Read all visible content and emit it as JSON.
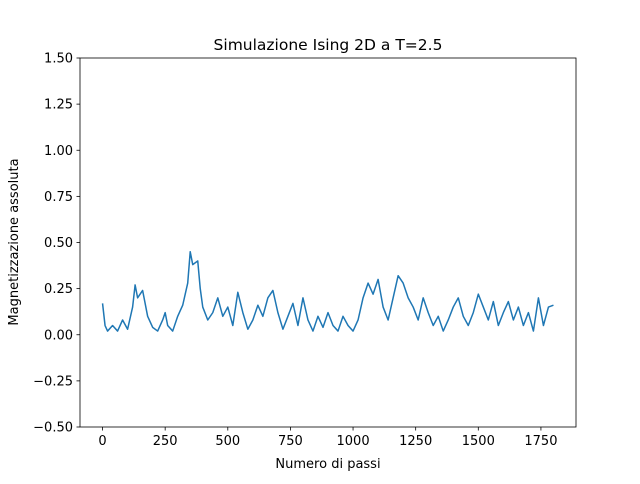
{
  "chart_data": {
    "type": "line",
    "title": "Simulazione Ising 2D a T=2.5",
    "x_label": "Numero di passi",
    "y_label": "Magnetizzazione assoluta",
    "color": "#1f77b4",
    "x": [
      0,
      10,
      20,
      40,
      60,
      80,
      100,
      120,
      130,
      140,
      160,
      180,
      200,
      220,
      240,
      250,
      260,
      280,
      300,
      320,
      340,
      350,
      360,
      380,
      390,
      400,
      420,
      440,
      460,
      480,
      500,
      520,
      540,
      560,
      580,
      600,
      620,
      640,
      660,
      680,
      700,
      720,
      740,
      760,
      780,
      800,
      820,
      840,
      860,
      880,
      900,
      920,
      940,
      960,
      980,
      1000,
      1020,
      1040,
      1060,
      1080,
      1100,
      1120,
      1140,
      1160,
      1180,
      1200,
      1220,
      1240,
      1260,
      1280,
      1300,
      1320,
      1340,
      1360,
      1380,
      1400,
      1420,
      1440,
      1460,
      1480,
      1500,
      1520,
      1540,
      1560,
      1580,
      1600,
      1620,
      1640,
      1660,
      1680,
      1700,
      1720,
      1740,
      1760,
      1780,
      1800
    ],
    "values": [
      0.17,
      0.05,
      0.02,
      0.05,
      0.02,
      0.08,
      0.03,
      0.15,
      0.27,
      0.2,
      0.24,
      0.1,
      0.04,
      0.02,
      0.08,
      0.12,
      0.05,
      0.02,
      0.1,
      0.16,
      0.28,
      0.45,
      0.38,
      0.4,
      0.25,
      0.15,
      0.08,
      0.12,
      0.2,
      0.1,
      0.15,
      0.05,
      0.23,
      0.12,
      0.03,
      0.08,
      0.16,
      0.1,
      0.2,
      0.24,
      0.12,
      0.03,
      0.1,
      0.17,
      0.05,
      0.2,
      0.08,
      0.02,
      0.1,
      0.04,
      0.12,
      0.05,
      0.02,
      0.1,
      0.05,
      0.02,
      0.08,
      0.2,
      0.28,
      0.22,
      0.3,
      0.15,
      0.08,
      0.2,
      0.32,
      0.28,
      0.2,
      0.15,
      0.08,
      0.2,
      0.12,
      0.05,
      0.1,
      0.02,
      0.08,
      0.15,
      0.2,
      0.1,
      0.05,
      0.12,
      0.22,
      0.15,
      0.08,
      0.18,
      0.05,
      0.12,
      0.18,
      0.08,
      0.15,
      0.05,
      0.12,
      0.02,
      0.2,
      0.05,
      0.15,
      0.16
    ],
    "xlim": [
      -90,
      1890
    ],
    "xticks": [
      0,
      250,
      500,
      750,
      1000,
      1250,
      1500,
      1750
    ],
    "ylim": [
      -0.5,
      1.5
    ],
    "yticks": [
      {
        "value": -0.5,
        "label": "−0.50"
      },
      {
        "value": -0.25,
        "label": "−0.25"
      },
      {
        "value": 0,
        "label": "0.00"
      },
      {
        "value": 0.25,
        "label": "0.25"
      },
      {
        "value": 0.5,
        "label": "0.50"
      },
      {
        "value": 0.75,
        "label": "0.75"
      },
      {
        "value": 1,
        "label": "1.00"
      },
      {
        "value": 1.25,
        "label": "1.25"
      },
      {
        "value": 1.5,
        "label": "1.50"
      }
    ]
  }
}
